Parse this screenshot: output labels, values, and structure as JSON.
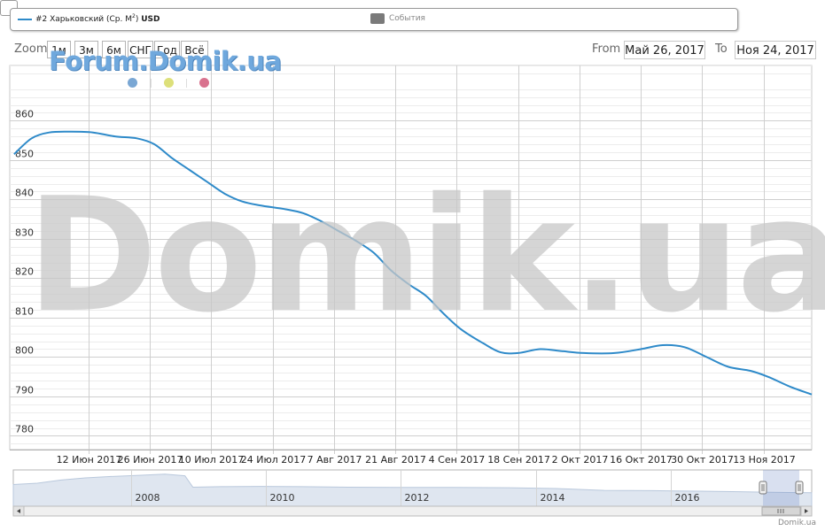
{
  "legend": {
    "series_label_prefix": "#2 Харьковский (Ср. М",
    "series_label_sup": "2",
    "series_label_suffix": ")",
    "series_unit": "USD",
    "events_label": "События"
  },
  "toolbar": {
    "zoom_label": "Zoom",
    "zoom_buttons": [
      "1м",
      "3м",
      "6м",
      "СНГ",
      "Год",
      "Всё"
    ],
    "from_label": "From",
    "from_value": "Май 26, 2017",
    "to_label": "To",
    "to_value": "Ноя 24, 2017"
  },
  "watermarks": {
    "small": "Forum.Domik.ua",
    "large": "Domik.ua"
  },
  "credit": "Domik.ua",
  "colors": {
    "series": "#2e8ac9",
    "grid": "#d8d8d8",
    "navigator_fill": "#dfe6f0",
    "dot_blue": "#7aa7d4",
    "dot_yellow": "#dde07a",
    "dot_pink": "#d9728e"
  },
  "chart_data": {
    "type": "line",
    "series": [
      {
        "name": "#2 Харьковский (Ср. М2) USD",
        "points": [
          [
            "2017-05-26",
            851.5
          ],
          [
            "2017-05-30",
            855.5
          ],
          [
            "2017-06-03",
            857.0
          ],
          [
            "2017-06-08",
            857.2
          ],
          [
            "2017-06-13",
            857.0
          ],
          [
            "2017-06-18",
            856.0
          ],
          [
            "2017-06-23",
            855.5
          ],
          [
            "2017-06-27",
            854.0
          ],
          [
            "2017-07-01",
            850.5
          ],
          [
            "2017-07-05",
            847.5
          ],
          [
            "2017-07-09",
            844.5
          ],
          [
            "2017-07-13",
            841.5
          ],
          [
            "2017-07-17",
            839.5
          ],
          [
            "2017-07-21",
            838.5
          ],
          [
            "2017-07-27",
            837.5
          ],
          [
            "2017-07-31",
            836.5
          ],
          [
            "2017-08-04",
            834.5
          ],
          [
            "2017-08-08",
            832.0
          ],
          [
            "2017-08-12",
            829.5
          ],
          [
            "2017-08-16",
            826.5
          ],
          [
            "2017-08-20",
            822.0
          ],
          [
            "2017-08-24",
            818.5
          ],
          [
            "2017-08-28",
            815.5
          ],
          [
            "2017-09-01",
            811.0
          ],
          [
            "2017-09-05",
            807.0
          ],
          [
            "2017-09-10",
            803.5
          ],
          [
            "2017-09-14",
            801.2
          ],
          [
            "2017-09-18",
            801.0
          ],
          [
            "2017-09-23",
            802.0
          ],
          [
            "2017-09-28",
            801.5
          ],
          [
            "2017-10-03",
            801.0
          ],
          [
            "2017-10-10",
            801.0
          ],
          [
            "2017-10-16",
            802.0
          ],
          [
            "2017-10-21",
            803.0
          ],
          [
            "2017-10-26",
            802.5
          ],
          [
            "2017-10-31",
            800.0
          ],
          [
            "2017-11-05",
            797.5
          ],
          [
            "2017-11-10",
            796.5
          ],
          [
            "2017-11-14",
            795.0
          ],
          [
            "2017-11-19",
            792.5
          ],
          [
            "2017-11-24",
            790.5
          ]
        ]
      }
    ],
    "ylim": [
      776.5,
      874
    ],
    "yticks": [
      780,
      790,
      800,
      810,
      820,
      830,
      840,
      850,
      860
    ],
    "x_tick_labels": [
      {
        "date": "2017-06-12",
        "label": "12 Июн 2017"
      },
      {
        "date": "2017-06-26",
        "label": "26 Июн 2017"
      },
      {
        "date": "2017-07-10",
        "label": "10 Июл 2017"
      },
      {
        "date": "2017-07-24",
        "label": "24 Июл 2017"
      },
      {
        "date": "2017-08-07",
        "label": "7 Авг 2017"
      },
      {
        "date": "2017-08-21",
        "label": "21 Авг 2017"
      },
      {
        "date": "2017-09-04",
        "label": "4 Сен 2017"
      },
      {
        "date": "2017-09-18",
        "label": "18 Сен 2017"
      },
      {
        "date": "2017-10-02",
        "label": "2 Окт 2017"
      },
      {
        "date": "2017-10-16",
        "label": "16 Окт 2017"
      },
      {
        "date": "2017-10-30",
        "label": "30 Окт 2017"
      },
      {
        "date": "2017-11-13",
        "label": "13 Ноя 2017"
      }
    ],
    "grid": true,
    "navigator": {
      "year_labels": [
        "2008",
        "2010",
        "2012",
        "2014",
        "2016"
      ]
    }
  }
}
